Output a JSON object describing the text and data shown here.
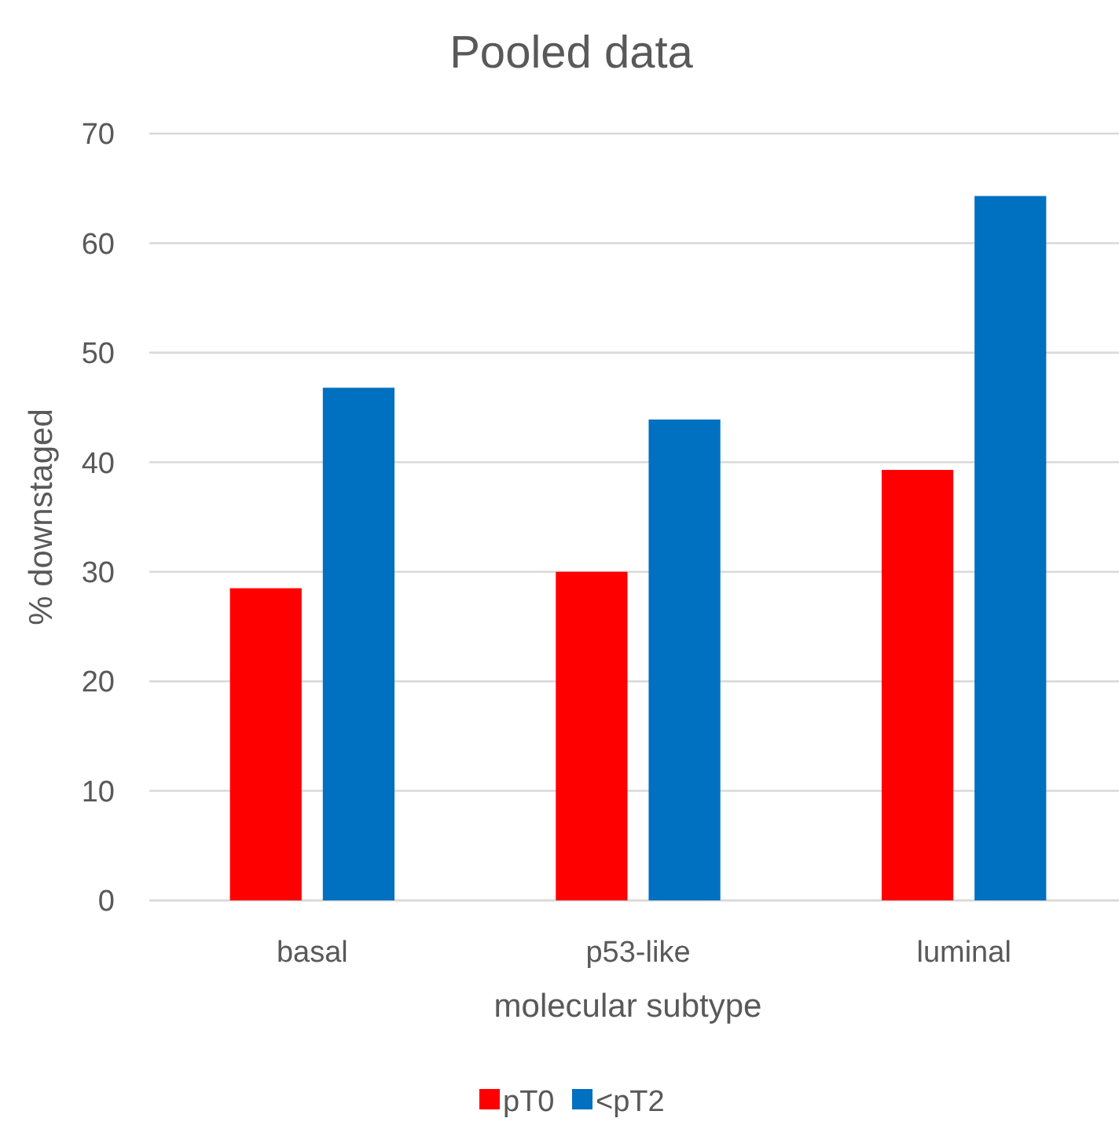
{
  "chart_data": {
    "type": "bar",
    "title": "Pooled data",
    "xlabel": "molecular subtype",
    "ylabel": "% downstaged",
    "categories": [
      "basal",
      "p53-like",
      "luminal"
    ],
    "series": [
      {
        "name": "pT0",
        "color": "#ff0000",
        "values": [
          28.5,
          30,
          39.3
        ]
      },
      {
        "name": "<pT2",
        "color": "#0070c0",
        "values": [
          46.8,
          43.9,
          64.3
        ]
      }
    ],
    "ylim": [
      0,
      70
    ],
    "yticks": [
      0,
      10,
      20,
      30,
      40,
      50,
      60,
      70
    ],
    "grid": "y",
    "legend": "bottom"
  }
}
